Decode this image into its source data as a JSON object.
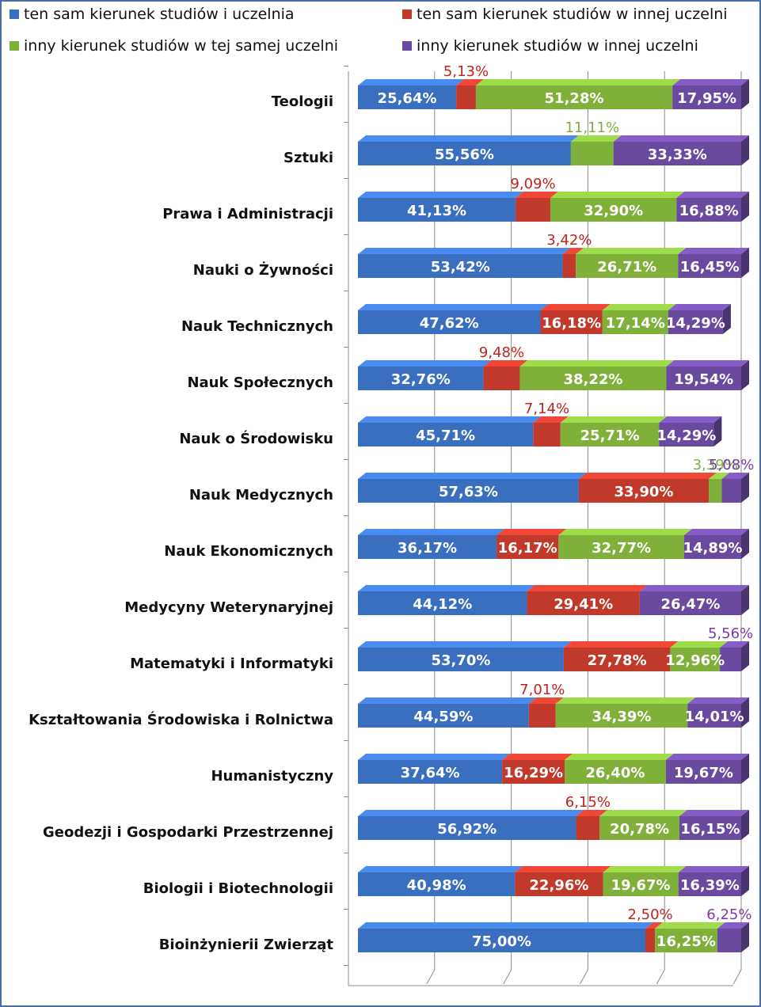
{
  "chart_data": {
    "type": "bar",
    "stacked": true,
    "orientation": "horizontal",
    "xlim": [
      0,
      100
    ],
    "grid": true,
    "legend_position": "top",
    "categories": [
      "Teologii",
      "Sztuki",
      "Prawa i Administracji",
      "Nauki o Żywności",
      "Nauk Technicznych",
      "Nauk Społecznych",
      "Nauk o Środowisku",
      "Nauk Medycznych",
      "Nauk Ekonomicznych",
      "Medycyny Weterynaryjnej",
      "Matematyki i Informatyki",
      "Kształtowania Środowiska i Rolnictwa",
      "Humanistyczny",
      "Geodezji i Gospodarki Przestrzennej",
      "Biologii i Biotechnologii",
      "Bioinżynierii Zwierząt"
    ],
    "series": [
      {
        "name": "ten sam kierunek studiów i uczelnia",
        "color": "#3a6fbf",
        "values": [
          25.64,
          55.56,
          41.13,
          53.42,
          47.62,
          32.76,
          45.71,
          57.63,
          36.17,
          44.12,
          53.7,
          44.59,
          37.64,
          56.92,
          40.98,
          75.0
        ],
        "labels": [
          "25,64%",
          "55,56%",
          "41,13%",
          "53,42%",
          "47,62%",
          "32,76%",
          "45,71%",
          "57,63%",
          "36,17%",
          "44,12%",
          "53,70%",
          "44,59%",
          "37,64%",
          "56,92%",
          "40,98%",
          "75,00%"
        ]
      },
      {
        "name": "ten sam kierunek studiów w innej uczelni",
        "color": "#c0392b",
        "values": [
          5.13,
          0,
          9.09,
          3.42,
          16.18,
          9.48,
          7.14,
          33.9,
          16.17,
          29.41,
          27.78,
          7.01,
          16.29,
          6.15,
          22.96,
          2.5
        ],
        "labels": [
          "5,13%",
          "",
          "9,09%",
          "3,42%",
          "16,18%",
          "9,48%",
          "7,14%",
          "33,90%",
          "16,17%",
          "29,41%",
          "27,78%",
          "7,01%",
          "16,29%",
          "6,15%",
          "22,96%",
          "2,50%"
        ]
      },
      {
        "name": "inny kierunek studiów w tej samej uczelni",
        "color": "#7fb03a",
        "values": [
          51.28,
          11.11,
          32.9,
          26.71,
          17.14,
          38.22,
          25.71,
          3.39,
          32.77,
          0,
          12.96,
          34.39,
          26.4,
          20.78,
          19.67,
          16.25
        ],
        "labels": [
          "51,28%",
          "11,11%",
          "32,90%",
          "26,71%",
          "17,14%",
          "38,22%",
          "25,71%",
          "3,39%",
          "32,77%",
          "",
          "12,96%",
          "34,39%",
          "26,40%",
          "20,78%",
          "19,67%",
          "16,25%"
        ]
      },
      {
        "name": "inny kierunek studiów w innej uczelni",
        "color": "#6a4a9e",
        "values": [
          17.95,
          33.33,
          16.88,
          16.45,
          14.29,
          19.54,
          14.29,
          5.08,
          14.89,
          26.47,
          5.56,
          14.01,
          19.67,
          16.15,
          16.39,
          6.25
        ],
        "labels": [
          "17,95%",
          "33,33%",
          "16,88%",
          "16,45%",
          "14,29%",
          "19,54%",
          "14,29%",
          "5,08%",
          "14,89%",
          "26,47%",
          "5,56%",
          "14,01%",
          "19,67%",
          "16,15%",
          "16,39%",
          "6,25%"
        ]
      }
    ]
  }
}
